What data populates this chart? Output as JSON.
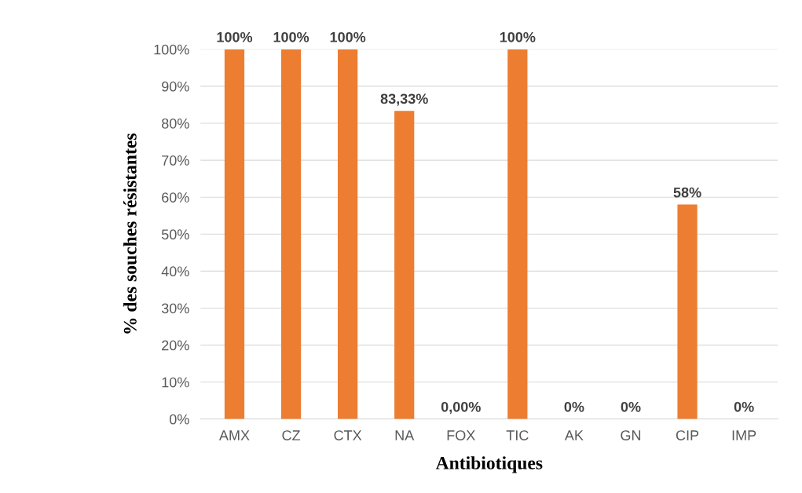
{
  "chart_data": {
    "type": "bar",
    "xlabel": "Antibiotiques",
    "ylabel": "% des souches résistantes",
    "categories": [
      "AMX",
      "CZ",
      "CTX",
      "NA",
      "FOX",
      "TIC",
      "AK",
      "GN",
      "CIP",
      "IMP"
    ],
    "values": [
      100,
      100,
      100,
      83.33,
      0,
      100,
      0,
      0,
      58,
      0
    ],
    "value_labels": [
      "100%",
      "100%",
      "100%",
      "83,33%",
      "0,00%",
      "100%",
      "0%",
      "0%",
      "58%",
      "0%"
    ],
    "color": "#ed7d31",
    "ylim": [
      0,
      100
    ],
    "yticks": [
      {
        "value": 0,
        "label": "0%"
      },
      {
        "value": 10,
        "label": "10%"
      },
      {
        "value": 20,
        "label": "20%"
      },
      {
        "value": 30,
        "label": "30%"
      },
      {
        "value": 40,
        "label": "40%"
      },
      {
        "value": 50,
        "label": "50%"
      },
      {
        "value": 60,
        "label": "60%"
      },
      {
        "value": 70,
        "label": "70%"
      },
      {
        "value": 80,
        "label": "80%"
      },
      {
        "value": 90,
        "label": "90%"
      },
      {
        "value": 100,
        "label": "100%"
      }
    ],
    "grid": "y",
    "legend": false
  }
}
